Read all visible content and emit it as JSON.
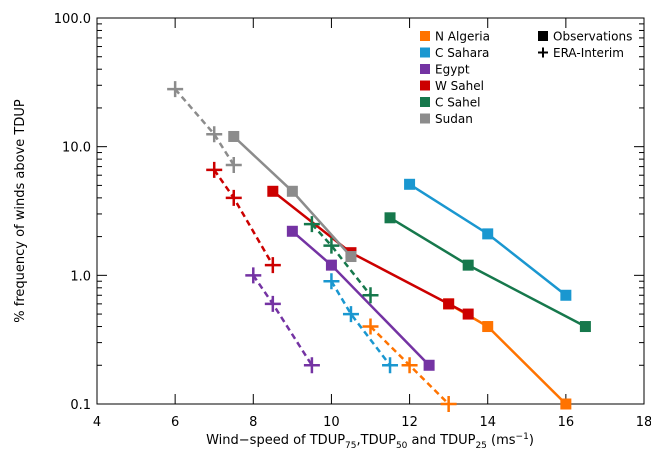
{
  "chart_data": {
    "type": "line",
    "ylabel": "% frequency of winds above TDUP",
    "xlabel": [
      "Wind−speed of TDUP",
      "75",
      ",TDUP",
      "50",
      " and TDUP",
      "25",
      " (ms",
      "−1",
      ")"
    ],
    "xlim": [
      4,
      18
    ],
    "xticks": [
      4,
      6,
      8,
      10,
      12,
      14,
      16,
      18
    ],
    "ylim": [
      0.1,
      100
    ],
    "log_y": true,
    "yticks": [
      {
        "value": 0.1,
        "label": "0.1"
      },
      {
        "value": 1,
        "label": "1.0"
      },
      {
        "value": 10,
        "label": "10.0"
      },
      {
        "value": 100,
        "label": "100.0"
      }
    ],
    "yminorticks": [
      0.2,
      0.3,
      0.4,
      0.5,
      0.6,
      0.7,
      0.8,
      0.9,
      2,
      3,
      4,
      5,
      6,
      7,
      8,
      9,
      20,
      30,
      40,
      50,
      60,
      70,
      80,
      90
    ],
    "legend": "upper right",
    "marker_legend": [
      "Observations",
      "ERA-Interim"
    ],
    "series": [
      {
        "name": "N Algeria",
        "color": "#ff7300",
        "obs_x": [
          13,
          14,
          16
        ],
        "obs_values": [
          0.6,
          0.4,
          0.1
        ],
        "era_x": [
          11,
          12,
          13
        ],
        "era_values": [
          0.4,
          0.2,
          0.1
        ]
      },
      {
        "name": "C Sahara",
        "color": "#1a97d0",
        "obs_x": [
          12,
          14,
          16
        ],
        "obs_values": [
          5.1,
          2.1,
          0.7
        ],
        "era_x": [
          10,
          10.5,
          11.5
        ],
        "era_values": [
          0.9,
          0.5,
          0.2
        ]
      },
      {
        "name": "Egypt",
        "color": "#7433a3",
        "obs_x": [
          9,
          10,
          12.5
        ],
        "obs_values": [
          2.2,
          1.2,
          0.2
        ],
        "era_x": [
          8,
          8.5,
          9.5
        ],
        "era_values": [
          1.0,
          0.6,
          0.2
        ]
      },
      {
        "name": "W Sahel",
        "color": "#cc0000",
        "obs_x": [
          8.5,
          10.5,
          13,
          13.5
        ],
        "obs_values": [
          4.5,
          1.5,
          0.6,
          0.5
        ],
        "era_x": [
          7,
          7.5,
          8.5
        ],
        "era_values": [
          6.6,
          4.0,
          1.2
        ]
      },
      {
        "name": "C Sahel",
        "color": "#16784c",
        "obs_x": [
          11.5,
          13.5,
          16.5
        ],
        "obs_values": [
          2.8,
          1.2,
          0.4
        ],
        "era_x": [
          9.5,
          10,
          11
        ],
        "era_values": [
          2.5,
          1.7,
          0.7
        ]
      },
      {
        "name": "Sudan",
        "color": "#8c8c8c",
        "obs_x": [
          7.5,
          9,
          10.5
        ],
        "obs_values": [
          12,
          4.5,
          1.4
        ],
        "era_x": [
          6,
          7,
          7.5
        ],
        "era_values": [
          28,
          12.5,
          7.2
        ]
      }
    ]
  }
}
